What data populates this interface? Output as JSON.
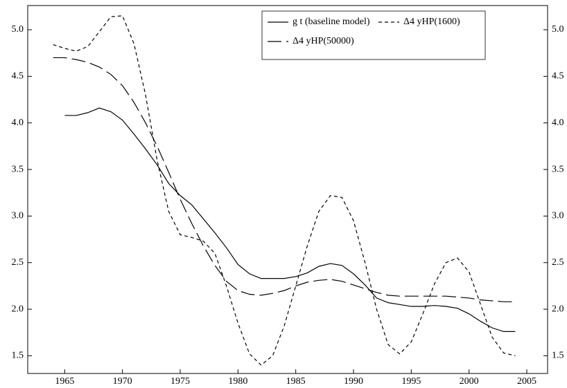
{
  "chart_data": {
    "type": "line",
    "x": [
      1964,
      1965,
      1966,
      1967,
      1968,
      1969,
      1970,
      1971,
      1972,
      1973,
      1974,
      1975,
      1976,
      1977,
      1978,
      1979,
      1980,
      1981,
      1982,
      1983,
      1984,
      1985,
      1986,
      1987,
      1988,
      1989,
      1990,
      1991,
      1992,
      1993,
      1994,
      1995,
      1996,
      1997,
      1998,
      1999,
      2000,
      2001,
      2002,
      2003,
      2004
    ],
    "series": [
      {
        "name": "g t (baseline model)",
        "color": "#000000",
        "dash": "solid",
        "values": [
          null,
          4.08,
          4.08,
          4.11,
          4.16,
          4.12,
          4.03,
          3.88,
          3.72,
          3.55,
          3.35,
          3.22,
          3.12,
          2.97,
          2.82,
          2.66,
          2.48,
          2.38,
          2.33,
          2.33,
          2.33,
          2.35,
          2.39,
          2.46,
          2.49,
          2.47,
          2.38,
          2.26,
          2.12,
          2.07,
          2.05,
          2.03,
          2.03,
          2.04,
          2.03,
          2.01,
          1.95,
          1.87,
          1.8,
          1.76,
          1.76
        ]
      },
      {
        "name": "Δ4 yHP(1600)",
        "color": "#000000",
        "dash": "short",
        "values": [
          4.84,
          4.8,
          4.77,
          4.82,
          4.98,
          5.14,
          5.15,
          4.85,
          4.3,
          3.6,
          3.05,
          2.8,
          2.77,
          2.73,
          2.6,
          2.25,
          1.85,
          1.52,
          1.4,
          1.5,
          1.82,
          2.25,
          2.68,
          3.05,
          3.22,
          3.2,
          2.95,
          2.5,
          2.0,
          1.62,
          1.52,
          1.65,
          1.95,
          2.27,
          2.5,
          2.55,
          2.4,
          2.05,
          1.7,
          1.53,
          1.5
        ]
      },
      {
        "name": "Δ4 yHP(50000)",
        "color": "#000000",
        "dash": "long",
        "values": [
          4.7,
          4.7,
          4.68,
          4.65,
          4.6,
          4.52,
          4.4,
          4.22,
          4.0,
          3.75,
          3.47,
          3.18,
          2.92,
          2.68,
          2.47,
          2.3,
          2.2,
          2.16,
          2.15,
          2.17,
          2.2,
          2.25,
          2.29,
          2.31,
          2.32,
          2.3,
          2.26,
          2.22,
          2.18,
          2.15,
          2.14,
          2.14,
          2.14,
          2.14,
          2.14,
          2.13,
          2.12,
          2.1,
          2.09,
          2.08,
          2.08
        ]
      }
    ],
    "xlim": [
      1961.8,
      2006.8
    ],
    "xticks": [
      1965,
      1970,
      1975,
      1980,
      1985,
      1990,
      1995,
      2000,
      2005
    ],
    "ylim": [
      1.31,
      5.26
    ],
    "yticks": [
      1.5,
      {
        "value": 2,
        "label": "2.0"
      },
      2.5,
      {
        "value": 3,
        "label": "3.0"
      },
      3.5,
      {
        "value": 4,
        "label": "4.0"
      },
      4.5,
      {
        "value": 5,
        "label": "5.0"
      }
    ],
    "y2lim": [
      1.31,
      5.26
    ],
    "y2ticks": [
      1.5,
      {
        "value": 2,
        "label": "2.0"
      },
      2.5,
      {
        "value": 3,
        "label": "3.0"
      },
      3.5,
      {
        "value": 4,
        "label": "4.0"
      },
      4.5,
      {
        "value": 5,
        "label": "5.0"
      }
    ],
    "grid": false,
    "legend": "top-right"
  }
}
